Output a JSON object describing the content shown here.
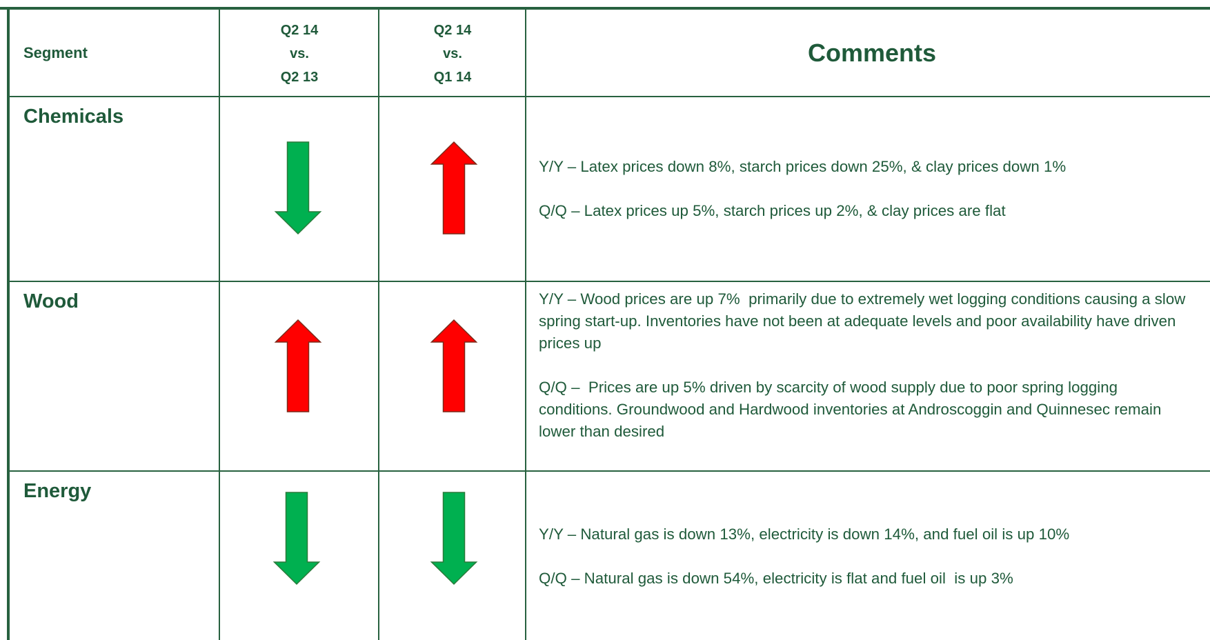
{
  "header": {
    "segment": "Segment",
    "yoy": [
      "Q2 14",
      "vs.",
      "Q2 13"
    ],
    "qoq": [
      "Q2 14",
      "vs.",
      "Q1 14"
    ],
    "comments": "Comments"
  },
  "rows": [
    {
      "segment": "Chemicals",
      "comments": [
        "Y/Y – Latex prices down 8%, starch prices down 25%, & clay prices down 1%",
        "Q/Q – Latex prices up 5%, starch prices up 2%, & clay prices are flat"
      ]
    },
    {
      "segment": "Wood",
      "comments": [
        "Y/Y – Wood prices are up 7%  primarily due to extremely wet logging conditions causing a slow spring start-up. Inventories have not been at adequate levels and poor availability have driven prices up",
        "Q/Q –  Prices are up 5% driven by scarcity of wood supply due to poor spring logging conditions. Groundwood and Hardwood inventories at Androscoggin and Quinnesec remain lower than desired"
      ]
    },
    {
      "segment": "Energy",
      "comments": [
        "Y/Y – Natural gas is down 13%, electricity is down 14%, and fuel oil is up 10%",
        "Q/Q – Natural gas is down 54%, electricity is flat and fuel oil  is up 3%"
      ]
    }
  ]
}
